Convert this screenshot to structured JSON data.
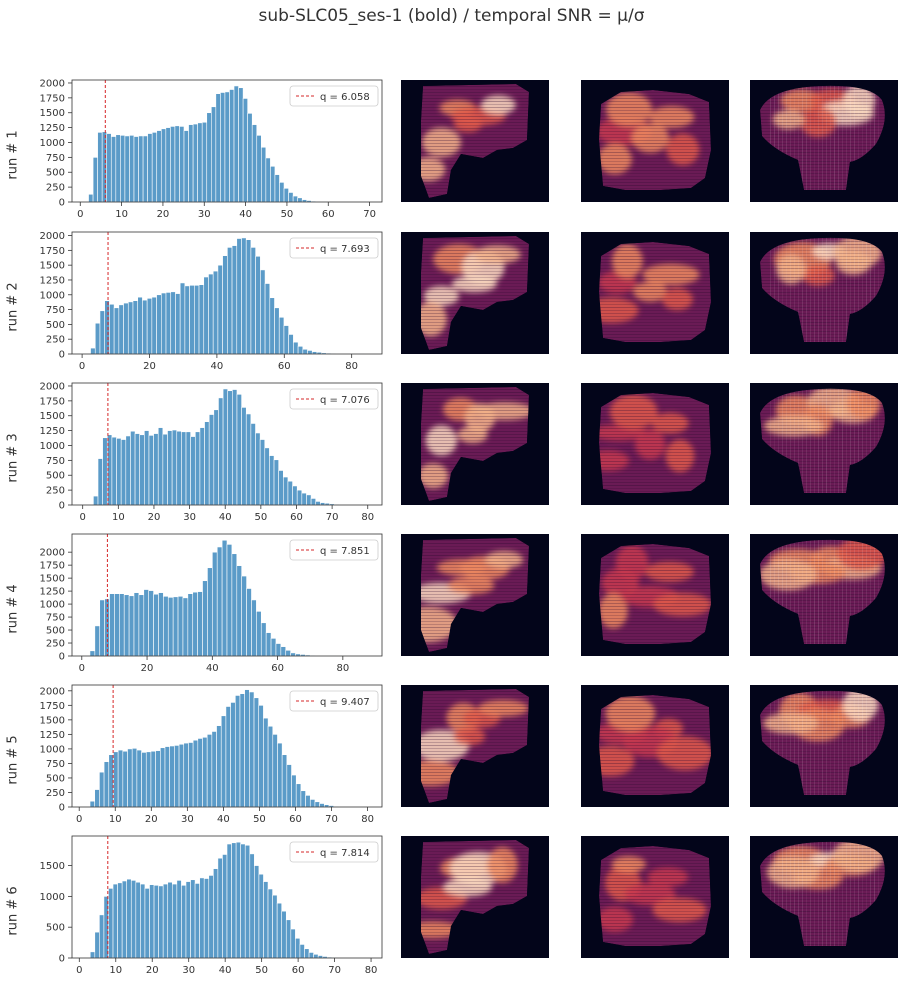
{
  "figure": {
    "title": "sub-SLC05_ses-1 (bold) / temporal SNR = μ/σ"
  },
  "colors": {
    "bar": "#5b9bc8",
    "bar_edge": "#ffffff",
    "threshold_line": "#d62728",
    "panel_background": "#03051a"
  },
  "chart_data": [
    {
      "type": "bar",
      "row_label": "run # 1",
      "legend": "q = 6.058",
      "legend_position": "top-right",
      "threshold": 6.058,
      "xlim": [
        -2,
        73
      ],
      "ylim": [
        0,
        2050
      ],
      "xticks": [
        0,
        10,
        20,
        30,
        40,
        50,
        60,
        70
      ],
      "yticks": [
        0,
        250,
        500,
        750,
        1000,
        1250,
        1500,
        1750,
        2000
      ],
      "bin_start": 2.0,
      "bin_width": 1.1,
      "values": [
        130,
        750,
        1170,
        1180,
        1150,
        1100,
        1130,
        1120,
        1110,
        1120,
        1100,
        1110,
        1110,
        1150,
        1170,
        1200,
        1230,
        1250,
        1270,
        1280,
        1270,
        1200,
        1300,
        1310,
        1330,
        1340,
        1500,
        1600,
        1820,
        1840,
        1850,
        1890,
        1950,
        1920,
        1740,
        1490,
        1300,
        1120,
        920,
        740,
        600,
        460,
        330,
        230,
        160,
        100,
        70,
        40,
        25,
        15,
        10,
        5,
        3,
        2
      ]
    },
    {
      "type": "bar",
      "row_label": "run # 2",
      "legend": "q = 7.693",
      "legend_position": "top-right",
      "threshold": 7.693,
      "xlim": [
        -3,
        89
      ],
      "ylim": [
        0,
        2060
      ],
      "xticks": [
        0,
        20,
        40,
        60,
        80
      ],
      "yticks": [
        0,
        250,
        500,
        750,
        1000,
        1250,
        1500,
        1750,
        2000
      ],
      "bin_start": 2.5,
      "bin_width": 1.4,
      "values": [
        100,
        520,
        730,
        900,
        840,
        780,
        830,
        860,
        880,
        900,
        960,
        910,
        940,
        960,
        1000,
        1030,
        1040,
        1050,
        1020,
        1200,
        1150,
        1160,
        1160,
        1170,
        1300,
        1350,
        1400,
        1500,
        1660,
        1800,
        1830,
        1950,
        1960,
        1930,
        1800,
        1650,
        1420,
        1190,
        950,
        780,
        620,
        480,
        330,
        200,
        130,
        80,
        60,
        40,
        30,
        20,
        15,
        10,
        8,
        6,
        8,
        5,
        3,
        2
      ]
    },
    {
      "type": "bar",
      "row_label": "run # 3",
      "legend": "q = 7.076",
      "legend_position": "top-right",
      "threshold": 7.076,
      "xlim": [
        -3,
        84
      ],
      "ylim": [
        0,
        2050
      ],
      "xticks": [
        0,
        10,
        20,
        30,
        40,
        50,
        60,
        70,
        80
      ],
      "yticks": [
        0,
        250,
        500,
        750,
        1000,
        1250,
        1500,
        1750,
        2000
      ],
      "bin_start": 3.0,
      "bin_width": 1.3,
      "values": [
        150,
        780,
        1130,
        1180,
        1140,
        1120,
        1100,
        1160,
        1240,
        1200,
        1180,
        1250,
        1170,
        1200,
        1300,
        1190,
        1250,
        1260,
        1240,
        1230,
        1230,
        1150,
        1230,
        1300,
        1400,
        1520,
        1600,
        1800,
        1950,
        1920,
        1940,
        1860,
        1640,
        1530,
        1370,
        1210,
        1100,
        960,
        830,
        760,
        580,
        470,
        400,
        320,
        250,
        200,
        170,
        110,
        60,
        40,
        30,
        20,
        10,
        5,
        3
      ]
    },
    {
      "type": "bar",
      "row_label": "run # 4",
      "legend": "q = 7.851",
      "legend_position": "top-right",
      "threshold": 7.851,
      "xlim": [
        -3,
        92
      ],
      "ylim": [
        0,
        2350
      ],
      "xticks": [
        0,
        20,
        40,
        60,
        80
      ],
      "yticks": [
        0,
        250,
        500,
        750,
        1000,
        1250,
        1500,
        1750,
        2000
      ],
      "bin_start": 2.5,
      "bin_width": 1.5,
      "values": [
        100,
        580,
        1080,
        1100,
        1200,
        1200,
        1200,
        1180,
        1160,
        1220,
        1180,
        1280,
        1260,
        1190,
        1220,
        1150,
        1130,
        1140,
        1150,
        1120,
        1200,
        1230,
        1240,
        1450,
        1700,
        2000,
        2100,
        2230,
        2150,
        1970,
        1740,
        1540,
        1300,
        1080,
        860,
        640,
        450,
        340,
        240,
        180,
        110,
        60,
        40,
        30,
        20,
        15,
        10,
        8,
        5,
        3
      ]
    },
    {
      "type": "bar",
      "row_label": "run # 5",
      "legend": "q = 9.407",
      "legend_position": "top-right",
      "threshold": 9.407,
      "xlim": [
        -2,
        84
      ],
      "ylim": [
        0,
        2100
      ],
      "xticks": [
        0,
        10,
        20,
        30,
        40,
        50,
        60,
        70,
        80
      ],
      "yticks": [
        0,
        250,
        500,
        750,
        1000,
        1250,
        1500,
        1750,
        2000
      ],
      "bin_start": 3.0,
      "bin_width": 1.3,
      "values": [
        100,
        300,
        600,
        780,
        900,
        950,
        980,
        960,
        1000,
        1010,
        980,
        940,
        950,
        960,
        970,
        1020,
        1040,
        1050,
        1060,
        1080,
        1100,
        1110,
        1150,
        1180,
        1200,
        1250,
        1300,
        1400,
        1570,
        1730,
        1800,
        1920,
        1950,
        2020,
        1980,
        1880,
        1750,
        1530,
        1390,
        1250,
        1100,
        900,
        730,
        550,
        400,
        280,
        200,
        130,
        90,
        60,
        40,
        25,
        10,
        5,
        3
      ]
    },
    {
      "type": "bar",
      "row_label": "run # 6",
      "legend": "q = 7.814",
      "legend_position": "top-right",
      "threshold": 7.814,
      "xlim": [
        -2,
        83
      ],
      "ylim": [
        0,
        1980
      ],
      "xticks": [
        0,
        10,
        20,
        30,
        40,
        50,
        60,
        70,
        80
      ],
      "yticks": [
        0,
        500,
        1000,
        1500
      ],
      "bin_start": 3.0,
      "bin_width": 1.25,
      "values": [
        100,
        420,
        700,
        1000,
        1130,
        1200,
        1220,
        1250,
        1280,
        1260,
        1230,
        1200,
        1130,
        1190,
        1180,
        1170,
        1200,
        1230,
        1200,
        1260,
        1180,
        1240,
        1270,
        1210,
        1300,
        1290,
        1340,
        1450,
        1620,
        1680,
        1850,
        1870,
        1880,
        1850,
        1830,
        1690,
        1500,
        1360,
        1240,
        1120,
        1020,
        890,
        760,
        620,
        470,
        320,
        220,
        150,
        90,
        60,
        40,
        25,
        15,
        10,
        5
      ]
    }
  ]
}
